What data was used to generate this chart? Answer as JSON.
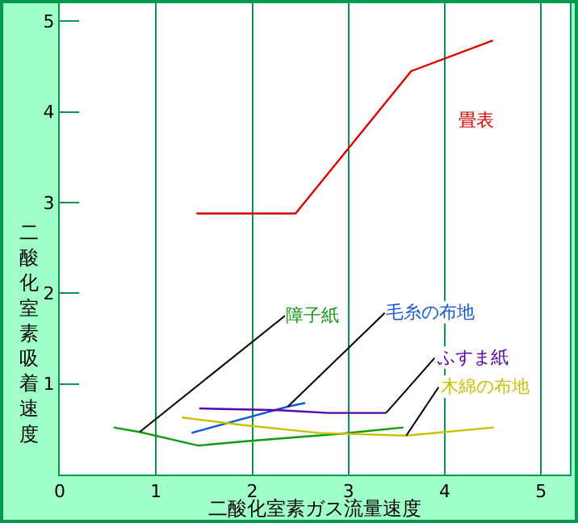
{
  "chart_data": {
    "type": "line",
    "xlabel": "二酸化室素ガス流量速度",
    "ylabel": "二酸化室素吸着速度",
    "xlim": [
      0,
      5.3
    ],
    "ylim": [
      0,
      5.2
    ],
    "xticks": [
      0,
      1,
      2,
      3,
      4,
      5
    ],
    "yticks": [
      1,
      2,
      3,
      4,
      5
    ],
    "grid": "x",
    "legend": false,
    "marker": "none",
    "line_style": "solid",
    "series": [
      {
        "name": "畳表",
        "color": "#dd0000",
        "x": [
          1.42,
          2.45,
          3.65,
          4.5
        ],
        "values": [
          2.88,
          2.88,
          4.45,
          4.79
        ]
      },
      {
        "name": "障子紙",
        "color": "#119911",
        "x": [
          0.56,
          0.83,
          1.44,
          1.95,
          2.91,
          3.57
        ],
        "values": [
          0.52,
          0.47,
          0.32,
          0.37,
          0.45,
          0.52
        ]
      },
      {
        "name": "毛糸の布地",
        "color": "#1155dd",
        "x": [
          1.37,
          2.37,
          2.55
        ],
        "values": [
          0.46,
          0.75,
          0.79
        ]
      },
      {
        "name": "ふすま紙",
        "color": "#5500aa",
        "x": [
          1.45,
          2.28,
          2.79,
          3.39
        ],
        "values": [
          0.73,
          0.71,
          0.68,
          0.68
        ]
      },
      {
        "name": "木綿の布地",
        "color": "#c8c000",
        "x": [
          1.27,
          1.87,
          2.69,
          3.6,
          4.51
        ],
        "values": [
          0.63,
          0.55,
          0.46,
          0.43,
          0.52
        ]
      }
    ]
  }
}
